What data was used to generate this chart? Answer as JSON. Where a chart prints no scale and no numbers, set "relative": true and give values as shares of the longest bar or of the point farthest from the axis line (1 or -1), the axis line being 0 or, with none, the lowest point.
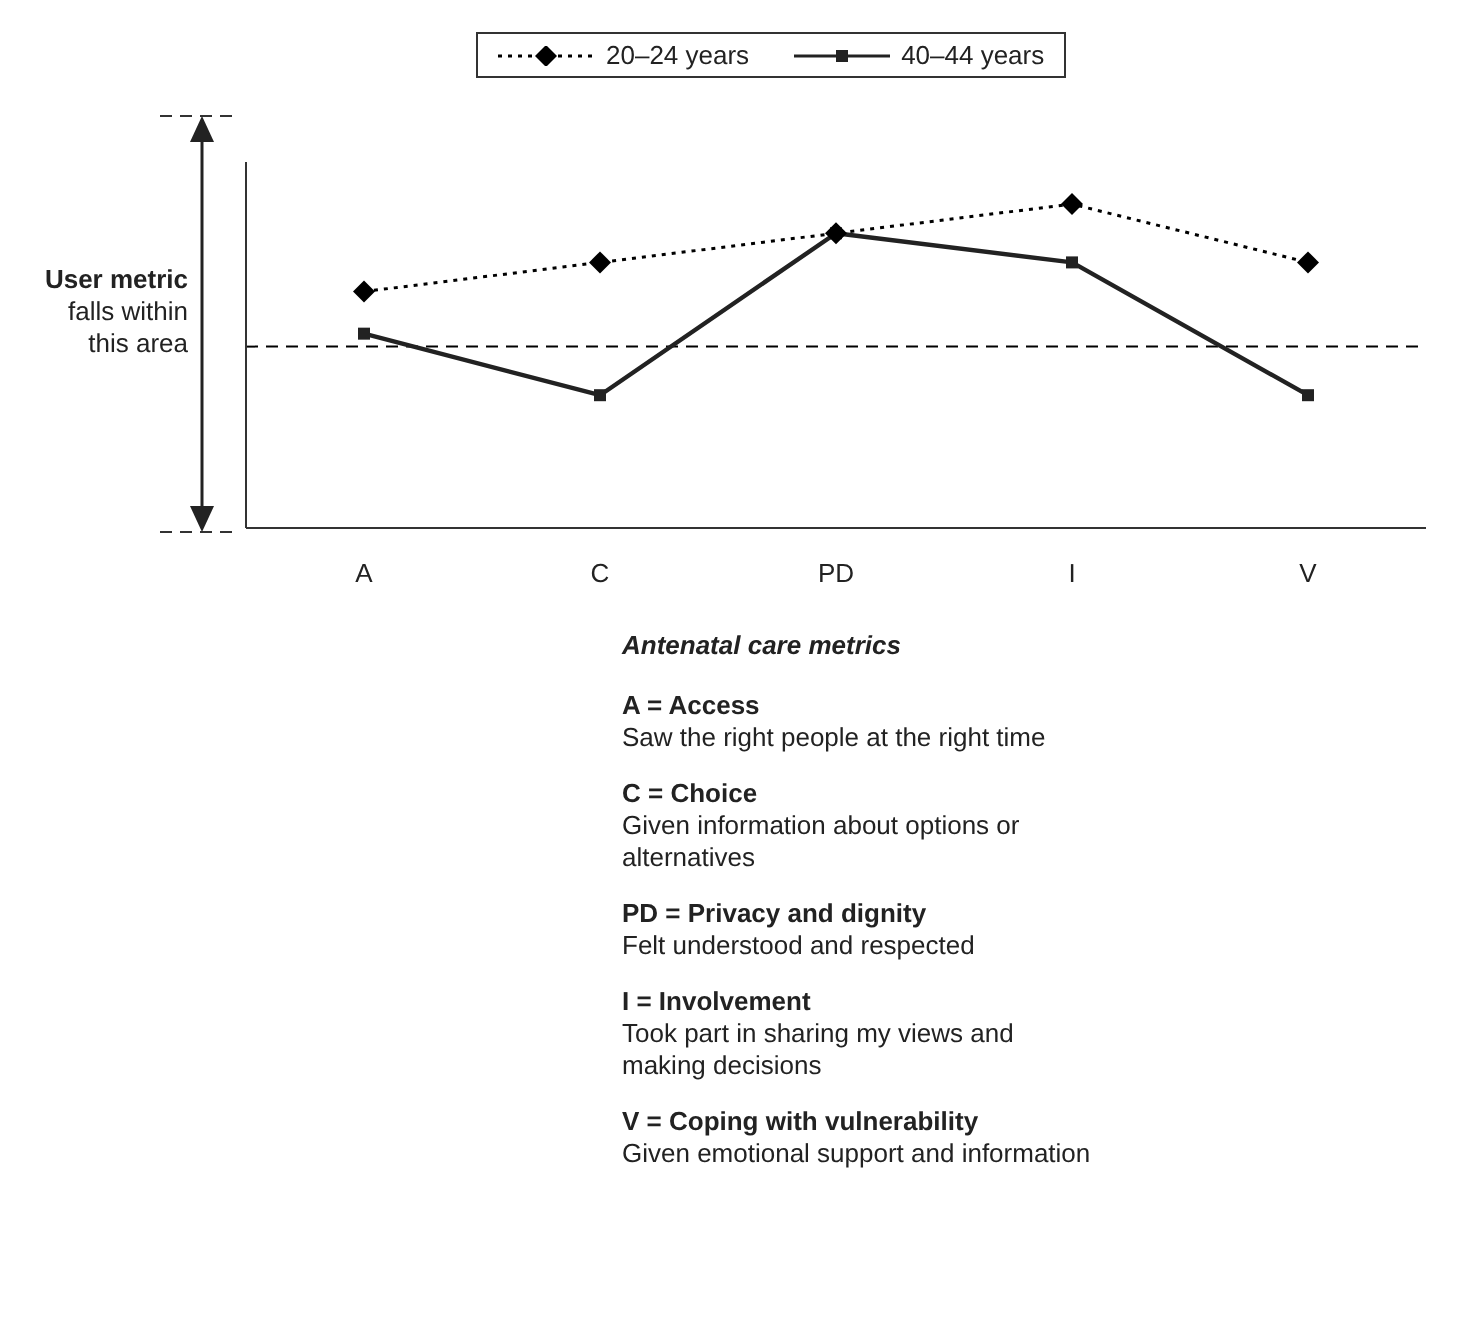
{
  "chart_data": {
    "type": "line",
    "relative": true,
    "categories": [
      "A",
      "C",
      "PD",
      "I",
      "V"
    ],
    "series": [
      {
        "name": "20–24 years",
        "color": "#000000",
        "values": [
          0.73,
          0.82,
          0.91,
          1,
          0.82
        ],
        "line_style": "dotted",
        "marker": "diamond"
      },
      {
        "name": "40–44 years",
        "color": "#222222",
        "values": [
          0.6,
          0.41,
          0.91,
          0.82,
          0.41
        ],
        "line_style": "solid",
        "marker": "square"
      }
    ],
    "ref_lines": [
      {
        "axis": "y",
        "value": 0.56,
        "color": "#000000",
        "line_style": "dashed"
      }
    ],
    "legend": "top",
    "grid": false,
    "xlabel": "Antenatal care metrics",
    "annotations": [
      "User metric",
      "falls within this area",
      "A = Access",
      "Saw the right people at the right time",
      "C = Choice",
      "Given information about options or alternatives",
      "PD = Privacy and dignity",
      "Felt understood and respected",
      "I = Involvement",
      "Took part in sharing my views and making decisions",
      "V = Coping with vulnerability",
      "Given emotional support and information"
    ]
  }
}
